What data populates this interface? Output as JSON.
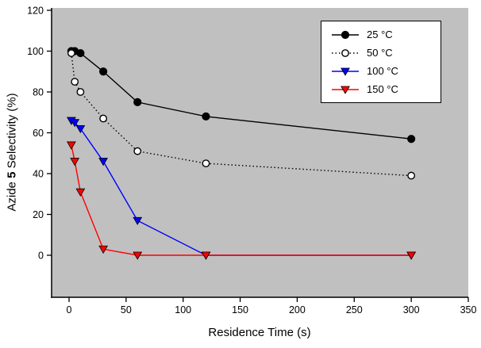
{
  "colors": {
    "plot_background": "#c0c0c0",
    "axis": "#000000",
    "page_background": "#ffffff",
    "legend_background": "#ffffff"
  },
  "chart_data": {
    "type": "line",
    "title": "",
    "xlabel": "Residence Time (s)",
    "ylabel_prefix": "Azide ",
    "ylabel_bold": "5",
    "ylabel_suffix": " Selectivity (%)",
    "xlim": [
      0,
      350
    ],
    "ylim": [
      0,
      120
    ],
    "xticks": [
      0,
      50,
      100,
      150,
      200,
      250,
      300,
      350
    ],
    "yticks": [
      0,
      20,
      40,
      60,
      80,
      100,
      120
    ],
    "grid": false,
    "legend_position": "top-right",
    "series": [
      {
        "name": "25 °C",
        "color": "#000000",
        "marker": "circle-filled",
        "line": "solid",
        "x": [
          2,
          5,
          10,
          30,
          60,
          120,
          300
        ],
        "y": [
          100,
          100,
          99,
          90,
          75,
          68,
          57
        ]
      },
      {
        "name": "50 °C",
        "color": "#000000",
        "marker": "circle-open",
        "line": "dotted",
        "x": [
          2,
          5,
          10,
          30,
          60,
          120,
          300
        ],
        "y": [
          99,
          85,
          80,
          67,
          51,
          45,
          39
        ]
      },
      {
        "name": "100 °C",
        "color": "#0000ff",
        "marker": "triangle-down-filled",
        "line": "solid",
        "x": [
          2,
          5,
          10,
          30,
          60,
          120,
          300
        ],
        "y": [
          66,
          65,
          62,
          46,
          17,
          0,
          0
        ]
      },
      {
        "name": "150 °C",
        "color": "#ff0000",
        "marker": "triangle-down-filled",
        "line": "solid",
        "x": [
          2,
          5,
          10,
          30,
          60,
          120,
          300
        ],
        "y": [
          54,
          46,
          31,
          3,
          0,
          0,
          0
        ]
      }
    ]
  }
}
